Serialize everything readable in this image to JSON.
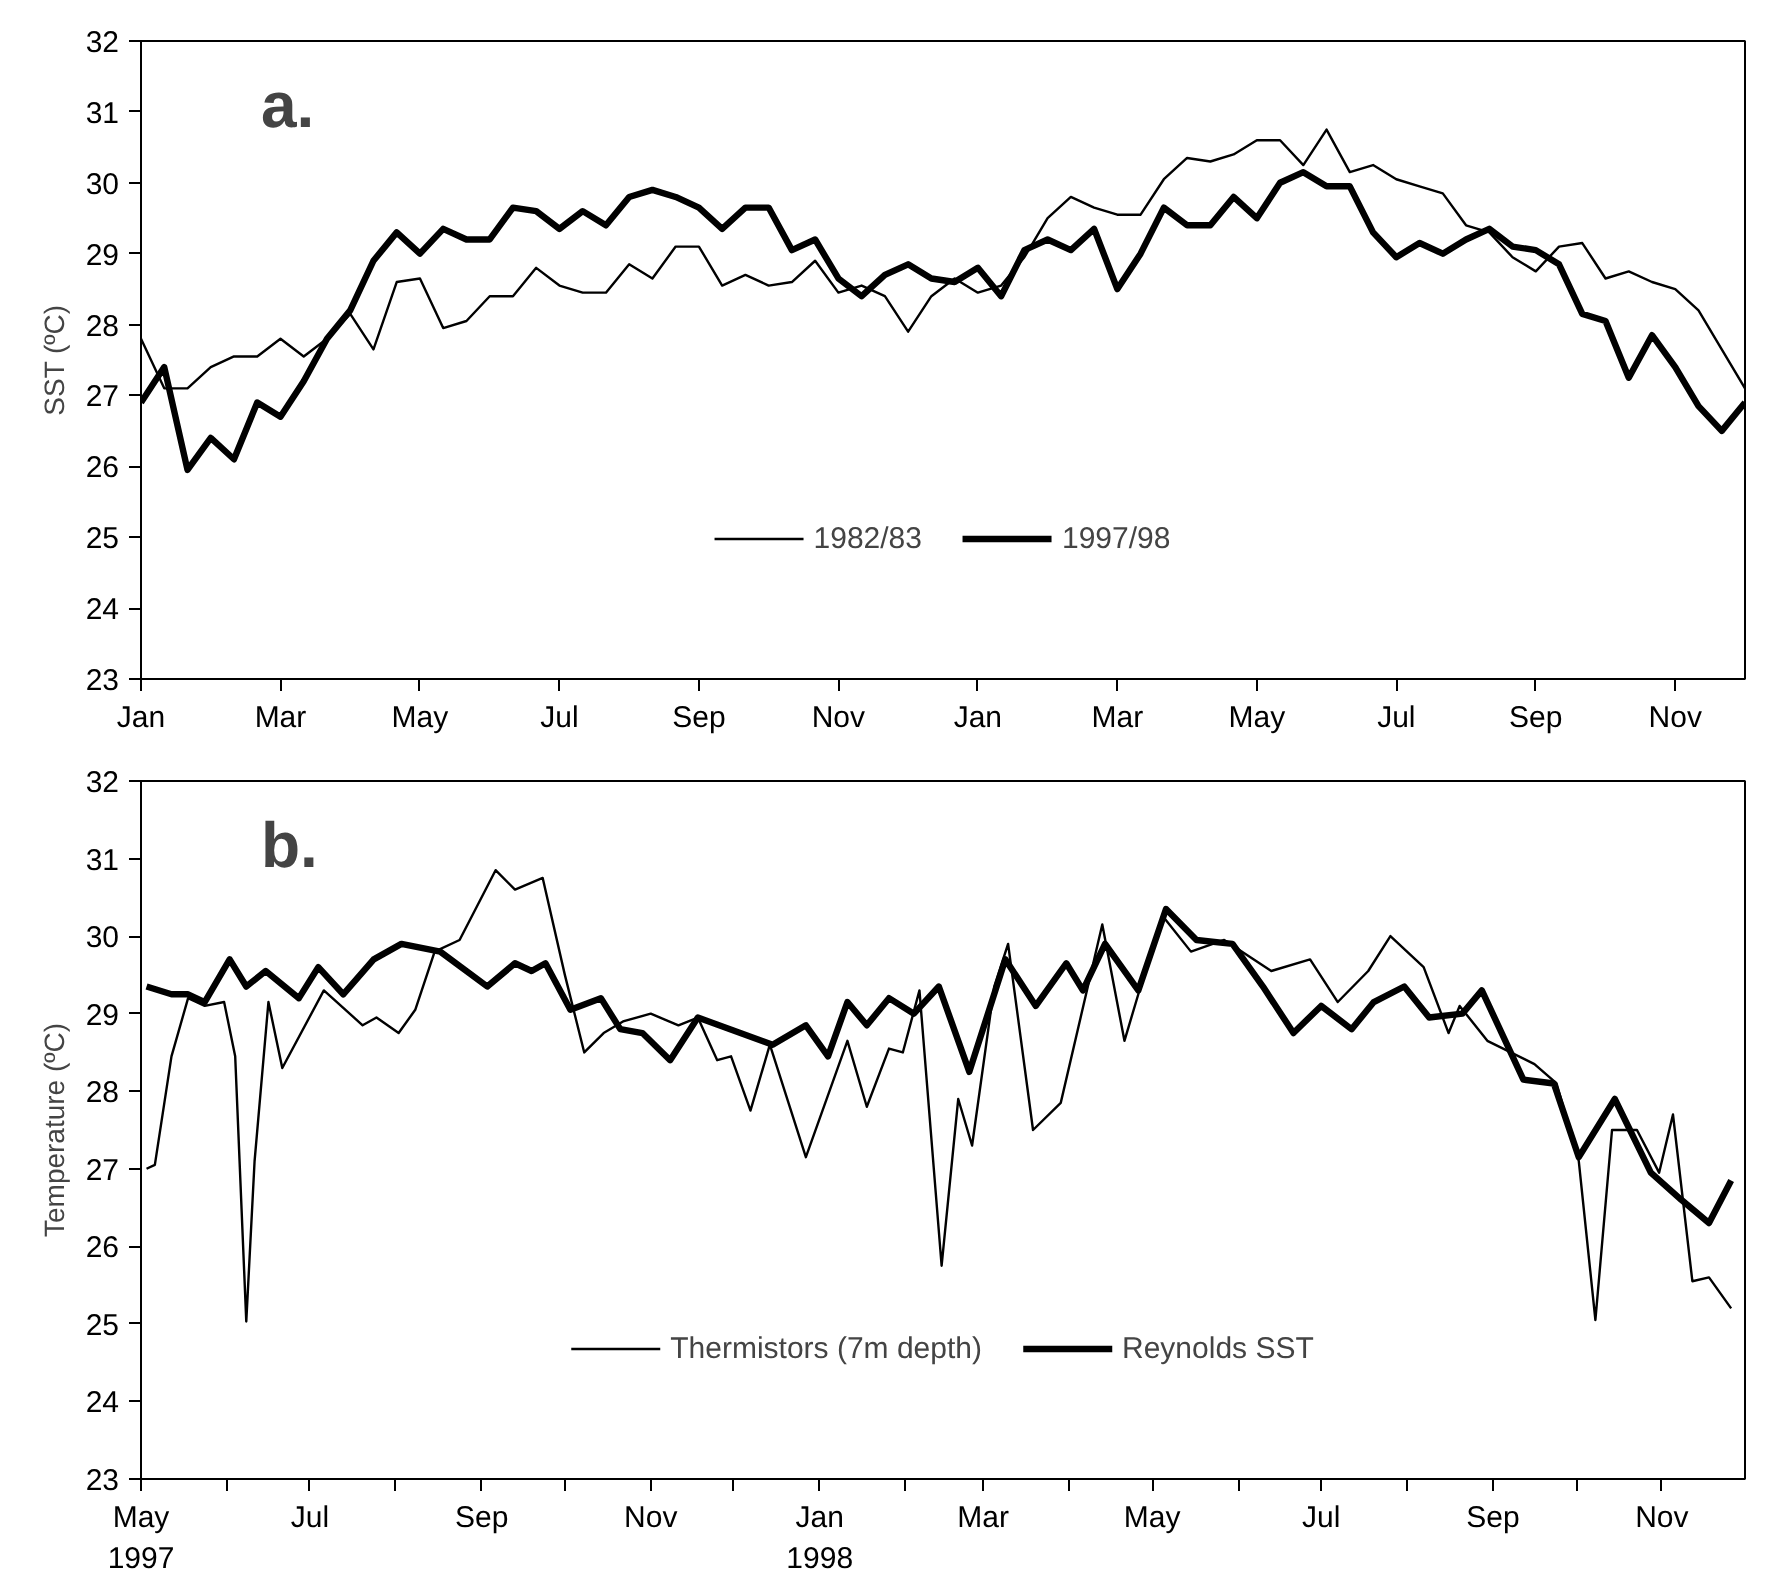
{
  "chart_data": [
    {
      "type": "line",
      "title": "a.",
      "ylabel": "SST (ºC)",
      "ylim": [
        23,
        32
      ],
      "yticks": [
        23,
        24,
        25,
        26,
        27,
        28,
        29,
        30,
        31,
        32
      ],
      "categories": [
        "Jan",
        null,
        null,
        null,
        null,
        null,
        "Mar",
        null,
        null,
        null,
        null,
        null,
        "May",
        null,
        null,
        null,
        null,
        null,
        "Jul",
        null,
        null,
        null,
        null,
        null,
        "Sep",
        null,
        null,
        null,
        null,
        null,
        "Nov",
        null,
        null,
        null,
        null,
        null,
        "Jan",
        null,
        null,
        null,
        null,
        null,
        "Mar",
        null,
        null,
        null,
        null,
        null,
        "May",
        null,
        null,
        null,
        null,
        null,
        "Jul",
        null,
        null,
        null,
        null,
        null,
        "Sep",
        null,
        null,
        null,
        null,
        null,
        "Nov",
        null,
        null,
        null
      ],
      "grid": false,
      "legend": "bottom",
      "series": [
        {
          "name": "1982/83",
          "color": "#000000",
          "values": [
            27.8,
            27.1,
            27.1,
            27.4,
            27.55,
            27.55,
            27.8,
            27.55,
            27.8,
            28.15,
            27.65,
            28.6,
            28.65,
            27.95,
            28.05,
            28.4,
            28.4,
            28.8,
            28.55,
            28.45,
            28.45,
            28.85,
            28.65,
            29.1,
            29.1,
            28.55,
            28.7,
            28.55,
            28.6,
            28.9,
            28.45,
            28.55,
            28.4,
            27.9,
            28.4,
            28.65,
            28.45,
            28.55,
            28.95,
            29.5,
            29.8,
            29.65,
            29.55,
            29.55,
            30.05,
            30.35,
            30.3,
            30.4,
            30.6,
            30.6,
            30.25,
            30.75,
            30.15,
            30.25,
            30.05,
            29.95,
            29.85,
            29.4,
            29.3,
            28.95,
            28.75,
            29.1,
            29.15,
            28.65,
            28.75,
            28.6,
            28.5,
            28.2,
            27.65,
            27.1
          ]
        },
        {
          "name": "1997/98",
          "color": "#000000",
          "values": [
            26.9,
            27.4,
            25.95,
            26.4,
            26.1,
            26.9,
            26.7,
            27.2,
            27.8,
            28.2,
            28.9,
            29.3,
            29.0,
            29.35,
            29.2,
            29.2,
            29.65,
            29.6,
            29.35,
            29.6,
            29.4,
            29.8,
            29.9,
            29.8,
            29.65,
            29.35,
            29.65,
            29.65,
            29.05,
            29.2,
            28.65,
            28.4,
            28.7,
            28.85,
            28.65,
            28.6,
            28.8,
            28.4,
            29.05,
            29.2,
            29.05,
            29.35,
            28.5,
            29.0,
            29.65,
            29.4,
            29.4,
            29.8,
            29.5,
            30.0,
            30.15,
            29.95,
            29.95,
            29.3,
            28.95,
            29.15,
            29.0,
            29.2,
            29.35,
            29.1,
            29.05,
            28.85,
            28.15,
            28.05,
            27.25,
            27.85,
            27.4,
            26.85,
            26.5,
            26.9
          ]
        }
      ]
    },
    {
      "type": "line",
      "title": "b.",
      "ylabel": "Temperature (ºC)",
      "xlim": [
        "1997-05-01",
        "1998-12-01"
      ],
      "ylim": [
        23,
        32
      ],
      "yticks": [
        23,
        24,
        25,
        26,
        27,
        28,
        29,
        30,
        31,
        32
      ],
      "xticks": [
        {
          "value": "1997-05-01",
          "label": "May\n1997"
        },
        {
          "value": "1997-06-01",
          "label": null
        },
        {
          "value": "1997-07-01",
          "label": "Jul"
        },
        {
          "value": "1997-08-01",
          "label": null
        },
        {
          "value": "1997-09-01",
          "label": "Sep"
        },
        {
          "value": "1997-10-01",
          "label": null
        },
        {
          "value": "1997-11-01",
          "label": "Nov"
        },
        {
          "value": "1997-12-01",
          "label": null
        },
        {
          "value": "1998-01-01",
          "label": "Jan\n1998"
        },
        {
          "value": "1998-02-01",
          "label": null
        },
        {
          "value": "1998-03-01",
          "label": "Mar"
        },
        {
          "value": "1998-04-01",
          "label": null
        },
        {
          "value": "1998-05-01",
          "label": "May"
        },
        {
          "value": "1998-06-01",
          "label": null
        },
        {
          "value": "1998-07-01",
          "label": "Jul"
        },
        {
          "value": "1998-08-01",
          "label": null
        },
        {
          "value": "1998-09-01",
          "label": "Sep"
        },
        {
          "value": "1998-10-01",
          "label": null
        },
        {
          "value": "1998-11-01",
          "label": "Nov"
        }
      ],
      "grid": false,
      "legend": "bottom",
      "series": [
        {
          "name": "Thermistors (7m depth)",
          "color": "#000000",
          "x": [
            "1997-05-03",
            "1997-05-06",
            "1997-05-12",
            "1997-05-18",
            "1997-05-24",
            "1997-05-31",
            "1997-06-04",
            "1997-06-08",
            "1997-06-11",
            "1997-06-16",
            "1997-06-21",
            "1997-07-06",
            "1997-07-20",
            "1997-07-25",
            "1997-08-02",
            "1997-08-08",
            "1997-08-15",
            "1997-08-24",
            "1997-09-06",
            "1997-09-13",
            "1997-09-23",
            "1997-10-01",
            "1997-10-08",
            "1997-10-15",
            "1997-10-22",
            "1997-11-01",
            "1997-11-11",
            "1997-11-18",
            "1997-11-25",
            "1997-11-30",
            "1997-12-07",
            "1997-12-14",
            "1997-12-27",
            "1998-01-11",
            "1998-01-18",
            "1998-01-26",
            "1998-01-31",
            "1998-02-06",
            "1998-02-14",
            "1998-02-20",
            "1998-02-25",
            "1998-03-05",
            "1998-03-10",
            "1998-03-19",
            "1998-03-29",
            "1998-04-13",
            "1998-04-21",
            "1998-04-26",
            "1998-05-05",
            "1998-05-15",
            "1998-05-27",
            "1998-06-13",
            "1998-06-27",
            "1998-07-07",
            "1998-07-18",
            "1998-07-26",
            "1998-08-07",
            "1998-08-16",
            "1998-08-20",
            "1998-08-30",
            "1998-09-16",
            "1998-09-24",
            "1998-10-02",
            "1998-10-08",
            "1998-10-14",
            "1998-10-23",
            "1998-10-31",
            "1998-11-05",
            "1998-11-12",
            "1998-11-18",
            "1998-11-26"
          ],
          "values": [
            27.0,
            27.05,
            28.45,
            29.2,
            29.1,
            29.15,
            28.45,
            25.03,
            27.1,
            29.15,
            28.3,
            29.3,
            28.85,
            28.95,
            28.75,
            29.05,
            29.8,
            29.95,
            30.85,
            30.6,
            30.75,
            29.5,
            28.5,
            28.75,
            28.9,
            29.0,
            28.85,
            28.95,
            28.4,
            28.45,
            27.75,
            28.6,
            27.15,
            28.65,
            27.8,
            28.55,
            28.5,
            29.3,
            25.75,
            27.9,
            27.3,
            29.35,
            29.9,
            27.5,
            27.85,
            30.15,
            28.65,
            29.25,
            30.25,
            29.8,
            29.95,
            29.55,
            29.7,
            29.15,
            29.55,
            30.0,
            29.6,
            28.75,
            29.1,
            28.65,
            28.35,
            28.1,
            27.1,
            25.05,
            27.5,
            27.5,
            26.95,
            27.7,
            25.55,
            25.6,
            25.2
          ]
        },
        {
          "name": "Reynolds SST",
          "color": "#000000",
          "x": [
            "1997-05-03",
            "1997-05-12",
            "1997-05-18",
            "1997-05-24",
            "1997-06-02",
            "1997-06-08",
            "1997-06-15",
            "1997-06-27",
            "1997-07-04",
            "1997-07-13",
            "1997-07-24",
            "1997-08-03",
            "1997-08-17",
            "1997-09-03",
            "1997-09-13",
            "1997-09-19",
            "1997-09-24",
            "1997-10-03",
            "1997-10-14",
            "1997-10-21",
            "1997-10-29",
            "1997-11-08",
            "1997-11-18",
            "1997-12-15",
            "1997-12-27",
            "1998-01-04",
            "1998-01-11",
            "1998-01-18",
            "1998-01-26",
            "1998-02-04",
            "1998-02-13",
            "1998-02-24",
            "1998-03-09",
            "1998-03-20",
            "1998-03-31",
            "1998-04-06",
            "1998-04-14",
            "1998-04-26",
            "1998-05-06",
            "1998-05-17",
            "1998-05-30",
            "1998-06-10",
            "1998-06-21",
            "1998-07-01",
            "1998-07-12",
            "1998-07-20",
            "1998-07-31",
            "1998-08-09",
            "1998-08-21",
            "1998-08-28",
            "1998-09-12",
            "1998-09-23",
            "1998-10-02",
            "1998-10-15",
            "1998-10-28",
            "1998-11-08",
            "1998-11-18",
            "1998-11-26"
          ],
          "values": [
            29.35,
            29.25,
            29.25,
            29.15,
            29.7,
            29.35,
            29.55,
            29.2,
            29.6,
            29.25,
            29.7,
            29.9,
            29.8,
            29.35,
            29.65,
            29.55,
            29.65,
            29.05,
            29.2,
            28.8,
            28.75,
            28.4,
            28.95,
            28.6,
            28.85,
            28.45,
            29.15,
            28.85,
            29.2,
            29.0,
            29.35,
            28.25,
            29.7,
            29.1,
            29.65,
            29.3,
            29.9,
            29.3,
            30.35,
            29.95,
            29.9,
            29.35,
            28.75,
            29.1,
            28.8,
            29.15,
            29.35,
            28.95,
            29.0,
            29.3,
            28.15,
            28.1,
            27.15,
            27.9,
            26.95,
            26.6,
            26.3,
            26.85
          ]
        }
      ]
    }
  ]
}
